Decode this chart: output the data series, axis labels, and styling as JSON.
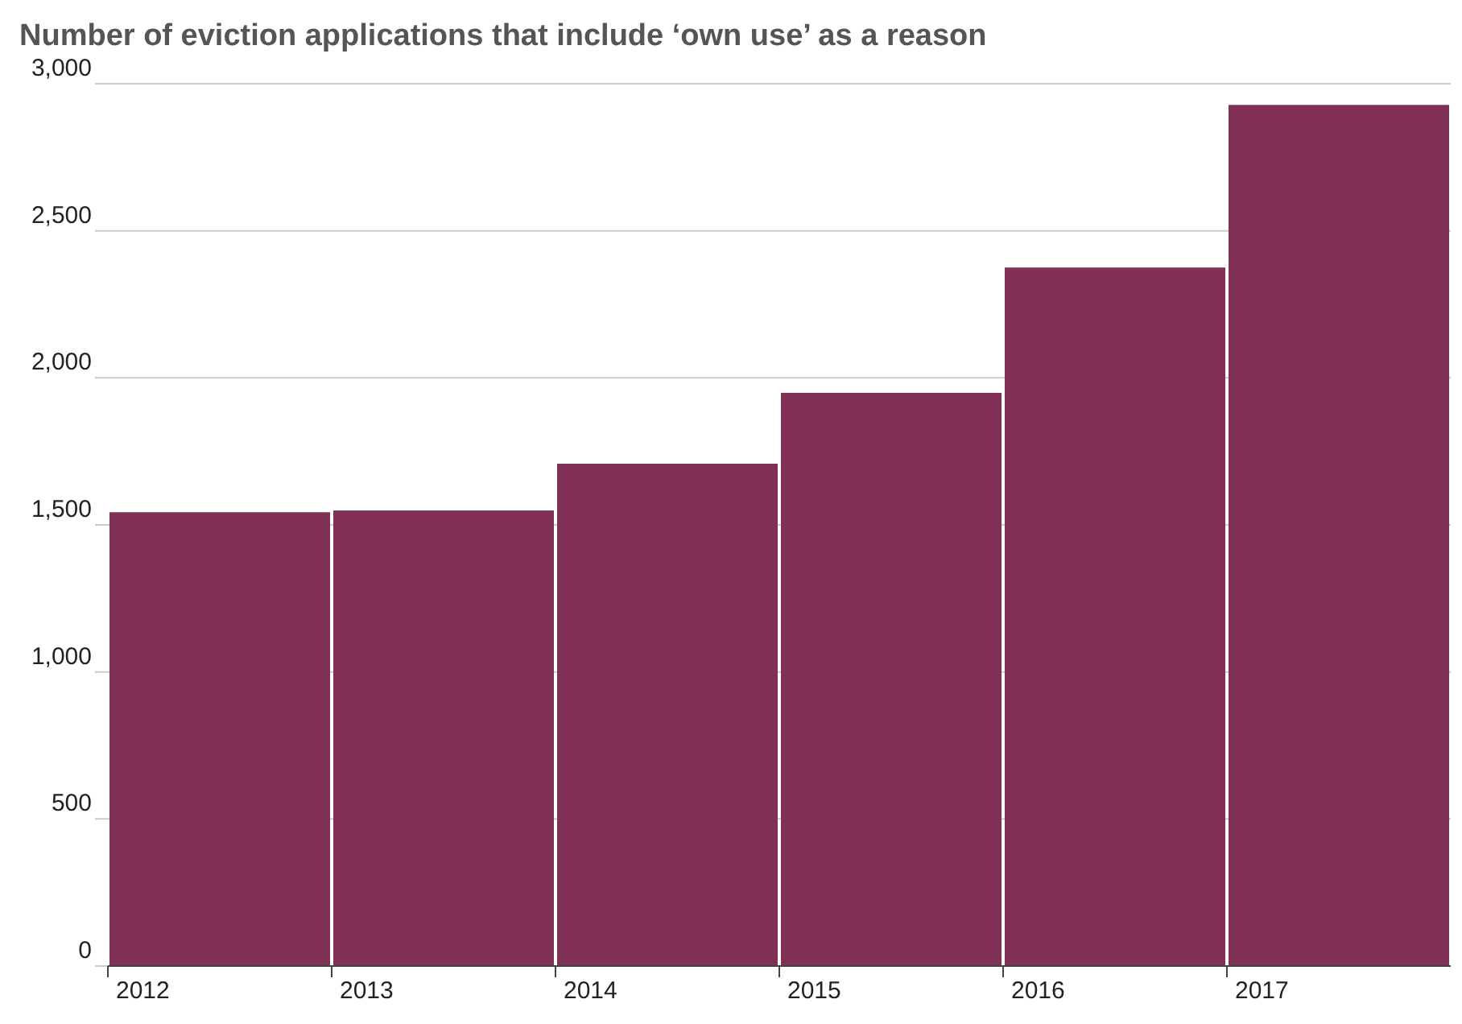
{
  "chart_data": {
    "type": "bar",
    "title": "Number of eviction applications that include ‘own use’ as a reason",
    "categories": [
      "2012",
      "2013",
      "2014",
      "2015",
      "2016",
      "2017"
    ],
    "values": [
      1543,
      1549,
      1708,
      1949,
      2375,
      2928
    ],
    "color": "#802f55",
    "ylim": [
      0,
      3000
    ],
    "yticks": [
      0,
      500,
      {
        "value": 1000,
        "label": "1,000"
      },
      {
        "value": 1500,
        "label": "1,500"
      },
      {
        "value": 2000,
        "label": "2,000"
      },
      {
        "value": 2500,
        "label": "2,500"
      },
      {
        "value": 3000,
        "label": "3,000"
      }
    ],
    "grid": "y"
  }
}
